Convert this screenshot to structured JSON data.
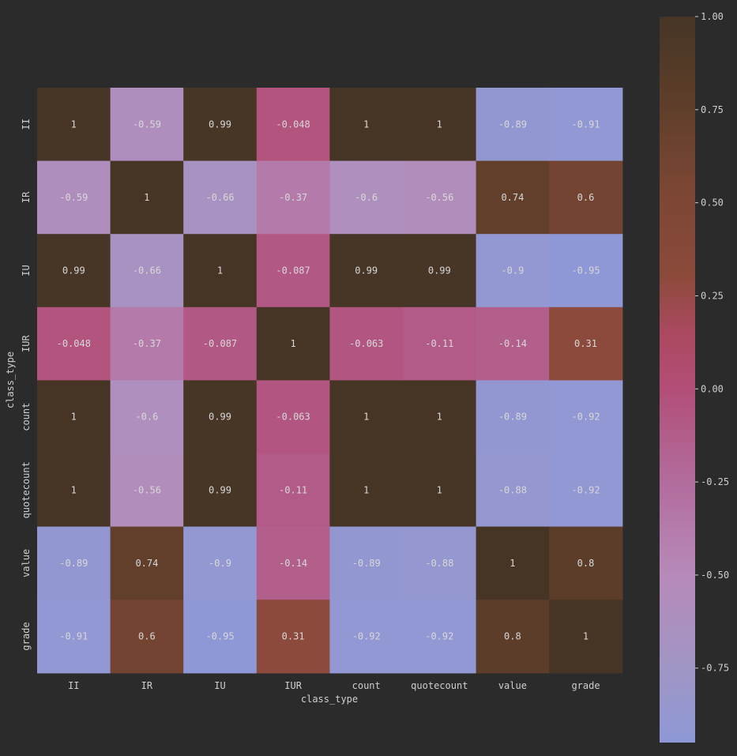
{
  "chart_data": {
    "type": "heatmap",
    "title": "",
    "xlabel": "class_type",
    "ylabel": "class_type",
    "x_categories": [
      "II",
      "IR",
      "IU",
      "IUR",
      "count",
      "quotecount",
      "value",
      "grade"
    ],
    "y_categories": [
      "II",
      "IR",
      "IU",
      "IUR",
      "count",
      "quotecount",
      "value",
      "grade"
    ],
    "values": [
      [
        1,
        -0.59,
        0.99,
        -0.048,
        1,
        1,
        -0.89,
        -0.91
      ],
      [
        -0.59,
        1,
        -0.66,
        -0.37,
        -0.6,
        -0.56,
        0.74,
        0.6
      ],
      [
        0.99,
        -0.66,
        1,
        -0.087,
        0.99,
        0.99,
        -0.9,
        -0.95
      ],
      [
        -0.048,
        -0.37,
        -0.087,
        1,
        -0.063,
        -0.11,
        -0.14,
        0.31
      ],
      [
        1,
        -0.6,
        0.99,
        -0.063,
        1,
        1,
        -0.89,
        -0.92
      ],
      [
        1,
        -0.56,
        0.99,
        -0.11,
        1,
        1,
        -0.88,
        -0.92
      ],
      [
        -0.89,
        0.74,
        -0.9,
        -0.14,
        -0.89,
        -0.88,
        1,
        0.8
      ],
      [
        -0.91,
        0.6,
        -0.95,
        0.31,
        -0.92,
        -0.92,
        0.8,
        1
      ]
    ],
    "annotations": [
      [
        "1",
        "-0.59",
        "0.99",
        "-0.048",
        "1",
        "1",
        "-0.89",
        "-0.91"
      ],
      [
        "-0.59",
        "1",
        "-0.66",
        "-0.37",
        "-0.6",
        "-0.56",
        "0.74",
        "0.6"
      ],
      [
        "0.99",
        "-0.66",
        "1",
        "-0.087",
        "0.99",
        "0.99",
        "-0.9",
        "-0.95"
      ],
      [
        "-0.048",
        "-0.37",
        "-0.087",
        "1",
        "-0.063",
        "-0.11",
        "-0.14",
        "0.31"
      ],
      [
        "1",
        "-0.6",
        "0.99",
        "-0.063",
        "1",
        "1",
        "-0.89",
        "-0.92"
      ],
      [
        "1",
        "-0.56",
        "0.99",
        "-0.11",
        "1",
        "1",
        "-0.88",
        "-0.92"
      ],
      [
        "-0.89",
        "0.74",
        "-0.9",
        "-0.14",
        "-0.89",
        "-0.88",
        "1",
        "0.8"
      ],
      [
        "-0.91",
        "0.6",
        "-0.95",
        "0.31",
        "-0.92",
        "-0.92",
        "0.8",
        "1"
      ]
    ],
    "colorbar": {
      "vmin": -0.95,
      "vmax": 1.0,
      "ticks": [
        1.0,
        0.75,
        0.5,
        0.25,
        0.0,
        -0.25,
        -0.5,
        -0.75
      ],
      "tick_labels": [
        "1.00",
        "0.75",
        "0.50",
        "0.25",
        "0.00",
        "-0.25",
        "-0.50",
        "-0.75"
      ],
      "placement": "right"
    },
    "colormap": [
      {
        "v": -0.95,
        "color": "#8e98d6"
      },
      {
        "v": -0.75,
        "color": "#a096c5"
      },
      {
        "v": -0.5,
        "color": "#b78ab9"
      },
      {
        "v": -0.25,
        "color": "#b26c9d"
      },
      {
        "v": 0.0,
        "color": "#b24e77"
      },
      {
        "v": 0.15,
        "color": "#ab4960"
      },
      {
        "v": 0.3,
        "color": "#8c4a3b"
      },
      {
        "v": 0.55,
        "color": "#7a4634"
      },
      {
        "v": 0.75,
        "color": "#603f2a"
      },
      {
        "v": 1.0,
        "color": "#463525"
      }
    ],
    "grid": false,
    "colors": {
      "background": "#2b2b2b",
      "text": "#cfcfcf"
    }
  }
}
